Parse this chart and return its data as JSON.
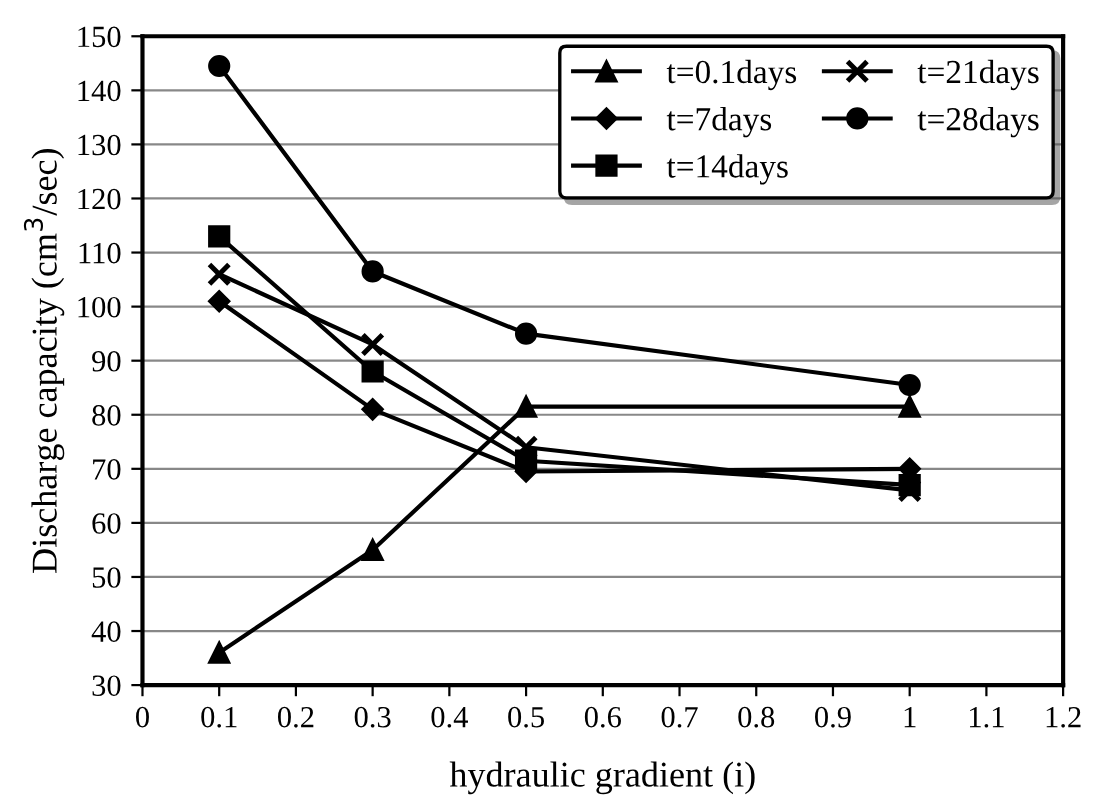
{
  "chart_data": {
    "type": "line",
    "xlabel": "hydraulic gradient (i)",
    "ylabel": "Discharge capacity (cm$^{3}$/sec)",
    "x": [
      0.1,
      0.3,
      0.5,
      1
    ],
    "series": [
      {
        "name": "t=0.1days",
        "color": "#000000",
        "marker": "triangle",
        "values": [
          36,
          55,
          81.5,
          81.5
        ]
      },
      {
        "name": "t=7days",
        "color": "#000000",
        "marker": "diamond",
        "values": [
          101,
          81,
          69.5,
          70
        ]
      },
      {
        "name": "t=14days",
        "color": "#000000",
        "marker": "square",
        "values": [
          113,
          88,
          71.5,
          67
        ]
      },
      {
        "name": "t=21days",
        "color": "#000000",
        "marker": "cross",
        "values": [
          106,
          93,
          74,
          66
        ]
      },
      {
        "name": "t=28days",
        "color": "#000000",
        "marker": "circle",
        "values": [
          144.5,
          106.5,
          95,
          85.5
        ]
      }
    ],
    "xlim": [
      0,
      1.2
    ],
    "xticks": [
      0,
      0.1,
      0.2,
      0.3,
      0.4,
      0.5,
      0.6,
      0.7,
      0.8,
      0.9,
      1,
      1.1,
      1.2
    ],
    "ylim": [
      30,
      150
    ],
    "yticks": [
      30,
      40,
      50,
      60,
      70,
      80,
      90,
      100,
      110,
      120,
      130,
      140,
      150
    ],
    "grid": "y",
    "legend": "top right",
    "line_style": "solid"
  }
}
